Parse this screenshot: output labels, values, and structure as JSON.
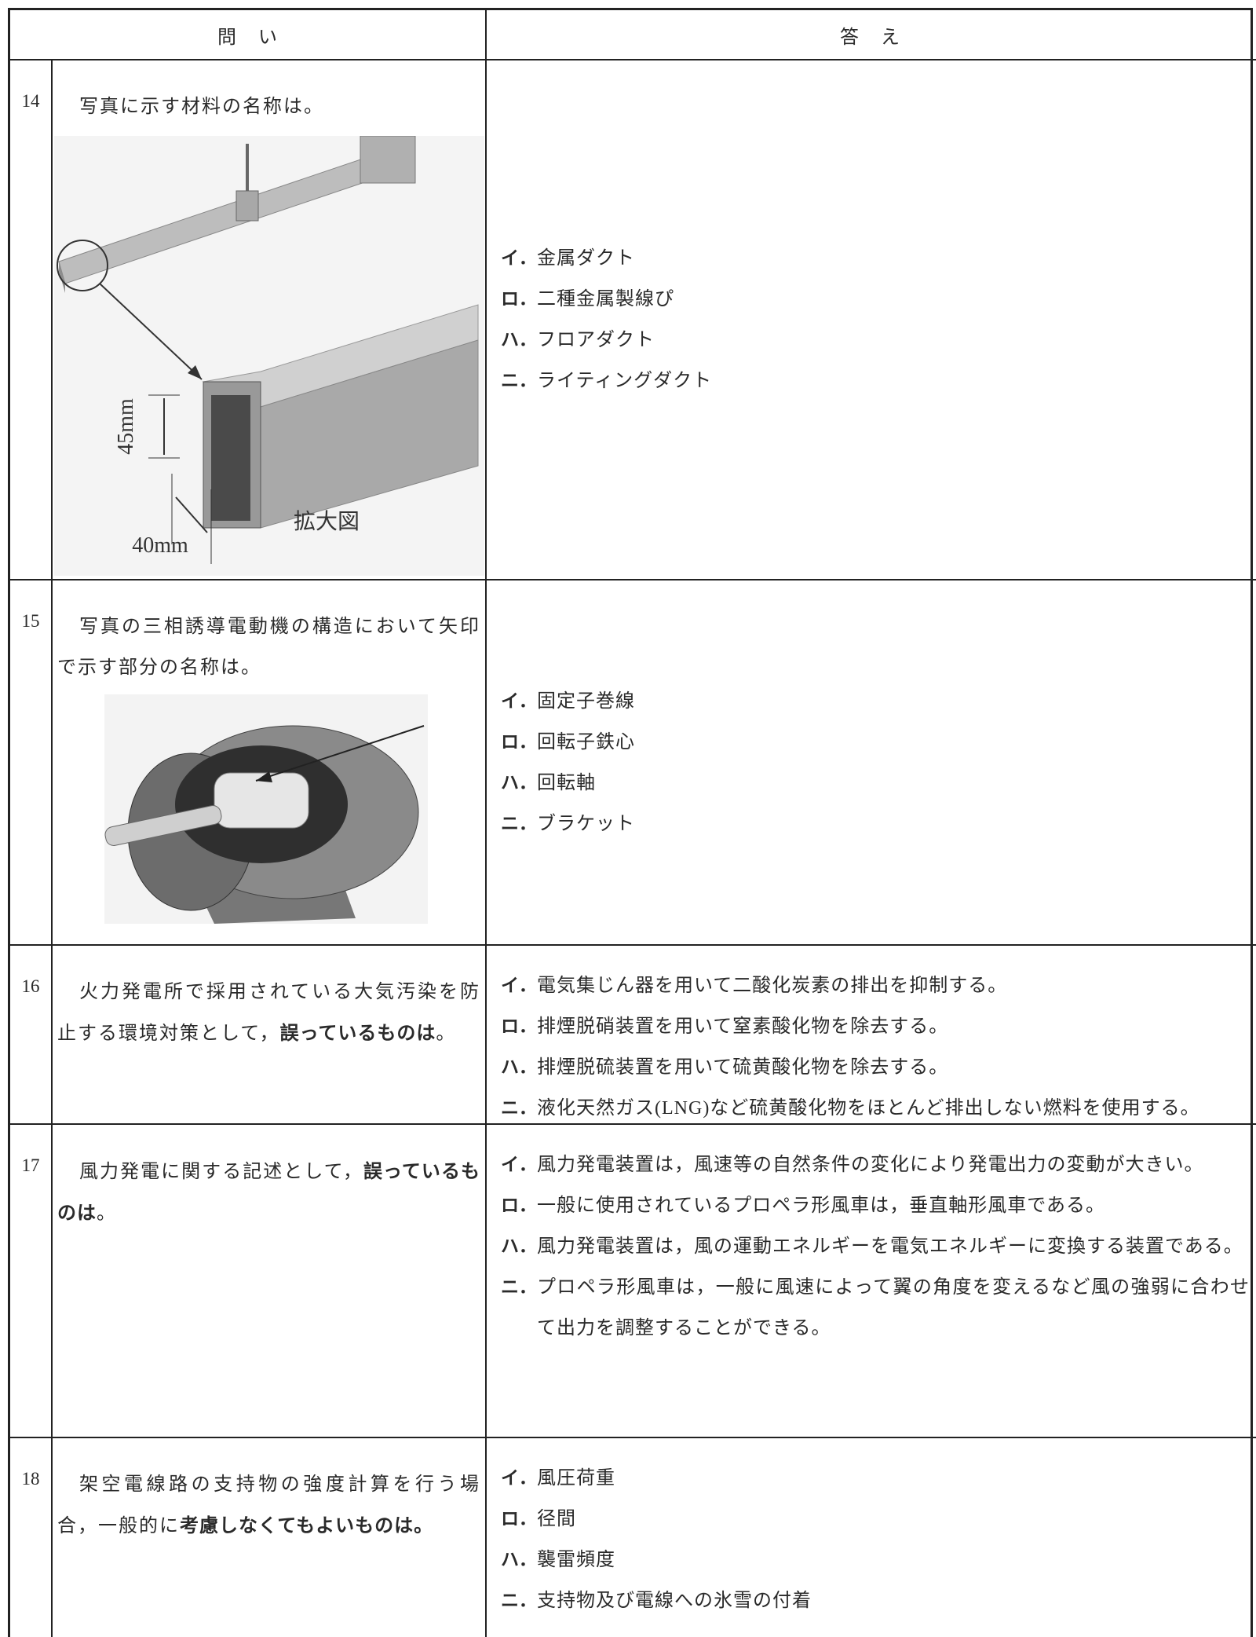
{
  "header": {
    "question": "問　い",
    "answer": "答　え"
  },
  "rows": [
    {
      "number": "14",
      "question": [
        {
          "text": "写真に示す材料の名称は。",
          "bold": false
        }
      ],
      "figure": {
        "labels": [
          "45mm",
          "40mm",
          "拡大図"
        ]
      },
      "choices": [
        {
          "label": "イ．",
          "text": "金属ダクト"
        },
        {
          "label": "ロ．",
          "text": "二種金属製線ぴ"
        },
        {
          "label": "ハ．",
          "text": "フロアダクト"
        },
        {
          "label": "ニ．",
          "text": "ライティングダクト"
        }
      ]
    },
    {
      "number": "15",
      "question": [
        {
          "text": "写真の三相誘導電動機の構造において矢印で示す部分の名称は。",
          "bold": false
        }
      ],
      "choices": [
        {
          "label": "イ．",
          "text": "固定子巻線"
        },
        {
          "label": "ロ．",
          "text": "回転子鉄心"
        },
        {
          "label": "ハ．",
          "text": "回転軸"
        },
        {
          "label": "ニ．",
          "text": "ブラケット"
        }
      ]
    },
    {
      "number": "16",
      "question": [
        {
          "text": "火力発電所で採用されている大気汚染を防止する環境対策として，",
          "bold": false
        },
        {
          "text": "誤っているものは",
          "bold": true
        },
        {
          "text": "。",
          "bold": false
        }
      ],
      "choices": [
        {
          "label": "イ．",
          "text": "電気集じん器を用いて二酸化炭素の排出を抑制する。"
        },
        {
          "label": "ロ．",
          "text": "排煙脱硝装置を用いて窒素酸化物を除去する。"
        },
        {
          "label": "ハ．",
          "text": "排煙脱硫装置を用いて硫黄酸化物を除去する。"
        },
        {
          "label": "ニ．",
          "text": "液化天然ガス(LNG)など硫黄酸化物をほとんど排出しない燃料を使用する。"
        }
      ]
    },
    {
      "number": "17",
      "question": [
        {
          "text": "風力発電に関する記述として，",
          "bold": false
        },
        {
          "text": "誤っているものは",
          "bold": true
        },
        {
          "text": "。",
          "bold": false
        }
      ],
      "choices": [
        {
          "label": "イ．",
          "text": "風力発電装置は，風速等の自然条件の変化により発電出力の変動が大きい。"
        },
        {
          "label": "ロ．",
          "text": "一般に使用されているプロペラ形風車は，垂直軸形風車である。"
        },
        {
          "label": "ハ．",
          "text": "風力発電装置は，風の運動エネルギーを電気エネルギーに変換する装置である。"
        },
        {
          "label": "ニ．",
          "text": "プロペラ形風車は，一般に風速によって翼の角度を変えるなど風の強弱に合わせて出力を調整することができる。"
        }
      ]
    },
    {
      "number": "18",
      "question": [
        {
          "text": "架空電線路の支持物の強度計算を行う場合，一般的に",
          "bold": false
        },
        {
          "text": "考慮しなくてもよいものは。",
          "bold": true
        }
      ],
      "choices": [
        {
          "label": "イ．",
          "text": "風圧荷重"
        },
        {
          "label": "ロ．",
          "text": "径間"
        },
        {
          "label": "ハ．",
          "text": "襲雷頻度"
        },
        {
          "label": "ニ．",
          "text": "支持物及び電線への氷雪の付着"
        }
      ]
    }
  ]
}
